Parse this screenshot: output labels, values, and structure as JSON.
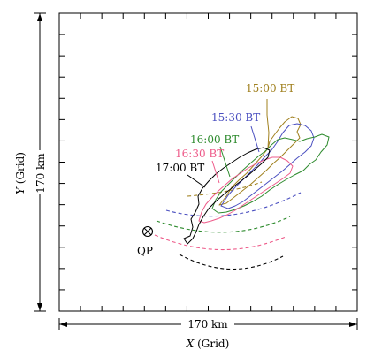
{
  "figure": {
    "y_axis_label_var": "Y",
    "y_axis_label_unit": " (Grid)",
    "y_axis_length_label": "170 km",
    "x_axis_length_label": "170 km",
    "x_axis_label_var": "X",
    "x_axis_label_unit": " (Grid)",
    "point_label": "QP",
    "colors": {
      "frame": "#000000",
      "t1500": "#a0801e",
      "t1530": "#4a4fc0",
      "t1600": "#2e8b2e",
      "t1630": "#ee5b8a",
      "t1700": "#000000"
    },
    "contour_labels": [
      {
        "id": "t1500",
        "text": "15:00 BT"
      },
      {
        "id": "t1530",
        "text": "15:30 BT"
      },
      {
        "id": "t1600",
        "text": "16:00 BT"
      },
      {
        "id": "t1630",
        "text": "16:30 BT"
      },
      {
        "id": "t1700",
        "text": "17:00 BT"
      }
    ]
  }
}
